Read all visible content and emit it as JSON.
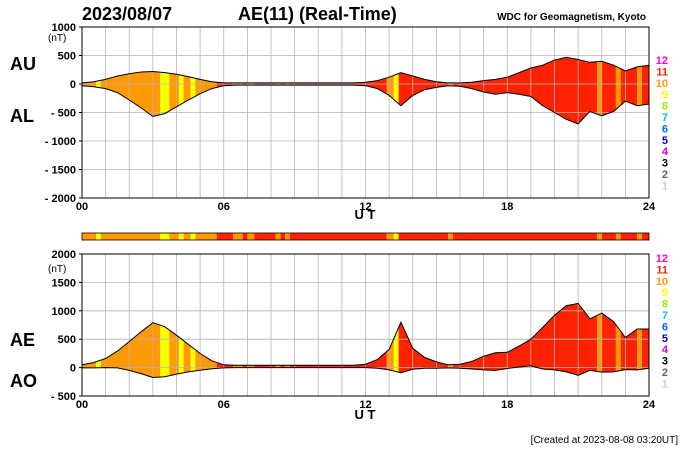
{
  "header": {
    "date": "2023/08/07",
    "title": "AE(11) (Real-Time)",
    "source": "WDC for Geomagnetism, Kyoto"
  },
  "footer": {
    "created": "[Created at 2023-08-08 03:20UT]"
  },
  "legend": {
    "labels": [
      "12",
      "11",
      "10",
      "9",
      "8",
      "7",
      "6",
      "5",
      "4",
      "3",
      "2",
      "1"
    ],
    "colors": [
      "#ff00cc",
      "#ff2200",
      "#ff9900",
      "#ffff00",
      "#99ee00",
      "#00cccc",
      "#0066ff",
      "#0000cc",
      "#cc00cc",
      "#000000",
      "#666666",
      "#cccccc"
    ]
  },
  "chart_data": [
    {
      "id": "au-al",
      "type": "area",
      "unit_label": "(nT)",
      "left_labels": [
        "AU",
        "AL"
      ],
      "xlabel": "U T",
      "xlim": [
        0,
        24
      ],
      "ylim": [
        -2000,
        1000
      ],
      "x_ticks": [
        0,
        6,
        12,
        18,
        24
      ],
      "x_tick_labels": [
        "00",
        "06",
        "12",
        "18",
        "24"
      ],
      "y_ticks": [
        1000,
        500,
        0,
        -500,
        -1000,
        -1500,
        -2000
      ],
      "y_tick_labels": [
        "1000",
        "500",
        "0",
        "- 500",
        "- 1000",
        "- 1500",
        "- 2000"
      ],
      "grid": true,
      "x": [
        0,
        0.5,
        1,
        1.5,
        2,
        2.5,
        3,
        3.5,
        4,
        4.5,
        5,
        5.5,
        6,
        6.5,
        7,
        7.5,
        8,
        8.5,
        9,
        9.5,
        10,
        10.5,
        11,
        11.5,
        12,
        12.5,
        13,
        13.5,
        14,
        14.5,
        15,
        15.5,
        16,
        16.5,
        17,
        17.5,
        18,
        18.5,
        19,
        19.5,
        20,
        20.5,
        21,
        21.5,
        22,
        22.5,
        23,
        23.5,
        24
      ],
      "series": [
        {
          "key": "AU",
          "values": [
            20,
            40,
            80,
            140,
            180,
            210,
            220,
            200,
            170,
            130,
            80,
            40,
            20,
            20,
            20,
            20,
            20,
            20,
            20,
            20,
            20,
            20,
            20,
            20,
            30,
            60,
            120,
            200,
            140,
            80,
            40,
            20,
            20,
            30,
            60,
            80,
            120,
            200,
            280,
            330,
            420,
            470,
            430,
            380,
            400,
            330,
            230,
            300,
            330
          ]
        },
        {
          "key": "AL",
          "values": [
            -30,
            -50,
            -80,
            -150,
            -280,
            -420,
            -570,
            -520,
            -400,
            -280,
            -170,
            -80,
            -30,
            -20,
            -20,
            -20,
            -20,
            -20,
            -20,
            -20,
            -20,
            -20,
            -20,
            -20,
            -30,
            -80,
            -200,
            -380,
            -200,
            -100,
            -60,
            -30,
            -40,
            -80,
            -140,
            -180,
            -150,
            -180,
            -220,
            -380,
            -500,
            -620,
            -700,
            -480,
            -560,
            -480,
            -300,
            -380,
            -350
          ]
        }
      ]
    },
    {
      "id": "ae-ao",
      "type": "area",
      "unit_label": "(nT)",
      "left_labels": [
        "AE",
        "AO"
      ],
      "xlabel": "U T",
      "xlim": [
        0,
        24
      ],
      "ylim": [
        -500,
        2000
      ],
      "x_ticks": [
        0,
        6,
        12,
        18,
        24
      ],
      "x_tick_labels": [
        "00",
        "06",
        "12",
        "18",
        "24"
      ],
      "y_ticks": [
        2000,
        1500,
        1000,
        500,
        0,
        -500
      ],
      "y_tick_labels": [
        "2000",
        "1500",
        "1000",
        "500",
        "0",
        "- 500"
      ],
      "grid": true,
      "x": [
        0,
        0.5,
        1,
        1.5,
        2,
        2.5,
        3,
        3.5,
        4,
        4.5,
        5,
        5.5,
        6,
        6.5,
        7,
        7.5,
        8,
        8.5,
        9,
        9.5,
        10,
        10.5,
        11,
        11.5,
        12,
        12.5,
        13,
        13.5,
        14,
        14.5,
        15,
        15.5,
        16,
        16.5,
        17,
        17.5,
        18,
        18.5,
        19,
        19.5,
        20,
        20.5,
        21,
        21.5,
        22,
        22.5,
        23,
        23.5,
        24
      ],
      "series": [
        {
          "key": "AE",
          "values": [
            50,
            90,
            160,
            290,
            460,
            630,
            790,
            720,
            570,
            410,
            250,
            120,
            50,
            40,
            40,
            40,
            40,
            40,
            40,
            40,
            40,
            40,
            40,
            40,
            60,
            140,
            320,
            800,
            340,
            180,
            100,
            50,
            60,
            110,
            200,
            260,
            270,
            380,
            500,
            710,
            920,
            1090,
            1130,
            860,
            960,
            810,
            530,
            680,
            680
          ]
        },
        {
          "key": "AO",
          "values": [
            -5,
            -5,
            0,
            -5,
            -50,
            -105,
            -175,
            -160,
            -115,
            -75,
            -45,
            -20,
            -5,
            0,
            0,
            0,
            0,
            0,
            0,
            0,
            0,
            0,
            0,
            0,
            0,
            -10,
            -40,
            -90,
            -30,
            -10,
            -10,
            -5,
            -10,
            -25,
            -40,
            -50,
            -15,
            10,
            30,
            -25,
            -40,
            -75,
            -135,
            -50,
            -80,
            -75,
            -35,
            -40,
            -10
          ]
        }
      ]
    }
  ],
  "station_count_strip": {
    "segments": [
      {
        "from": 0,
        "to": 0.6,
        "count": 10
      },
      {
        "from": 0.6,
        "to": 0.8,
        "count": 9
      },
      {
        "from": 0.8,
        "to": 3.3,
        "count": 10
      },
      {
        "from": 3.3,
        "to": 3.7,
        "count": 9
      },
      {
        "from": 3.7,
        "to": 4.1,
        "count": 10
      },
      {
        "from": 4.1,
        "to": 4.3,
        "count": 9
      },
      {
        "from": 4.3,
        "to": 4.6,
        "count": 10
      },
      {
        "from": 4.6,
        "to": 4.8,
        "count": 9
      },
      {
        "from": 4.8,
        "to": 5.7,
        "count": 10
      },
      {
        "from": 5.7,
        "to": 6.4,
        "count": 11
      },
      {
        "from": 6.4,
        "to": 6.8,
        "count": 10
      },
      {
        "from": 6.8,
        "to": 7.0,
        "count": 11
      },
      {
        "from": 7.0,
        "to": 7.3,
        "count": 10
      },
      {
        "from": 7.3,
        "to": 8.2,
        "count": 11
      },
      {
        "from": 8.2,
        "to": 8.4,
        "count": 10
      },
      {
        "from": 8.4,
        "to": 8.6,
        "count": 11
      },
      {
        "from": 8.6,
        "to": 8.8,
        "count": 10
      },
      {
        "from": 8.8,
        "to": 12.9,
        "count": 11
      },
      {
        "from": 12.9,
        "to": 13.2,
        "count": 10
      },
      {
        "from": 13.2,
        "to": 13.4,
        "count": 9
      },
      {
        "from": 13.4,
        "to": 15.5,
        "count": 11
      },
      {
        "from": 15.5,
        "to": 15.7,
        "count": 10
      },
      {
        "from": 15.7,
        "to": 21.8,
        "count": 11
      },
      {
        "from": 21.8,
        "to": 22.0,
        "count": 10
      },
      {
        "from": 22.0,
        "to": 22.6,
        "count": 11
      },
      {
        "from": 22.6,
        "to": 22.8,
        "count": 10
      },
      {
        "from": 22.8,
        "to": 23.5,
        "count": 11
      },
      {
        "from": 23.5,
        "to": 23.7,
        "count": 10
      },
      {
        "from": 23.7,
        "to": 24,
        "count": 11
      }
    ]
  }
}
